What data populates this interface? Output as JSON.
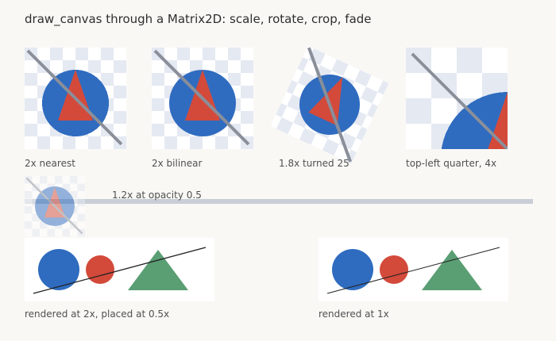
{
  "page": {
    "title": "draw_canvas through a Matrix2D: scale, rotate, crop, fade"
  },
  "thumbnails": [
    {
      "label": "2x nearest"
    },
    {
      "label": "2x bilinear"
    },
    {
      "label": "1.8x turned 25"
    },
    {
      "label": "top-left quarter, 4x"
    }
  ],
  "faded": {
    "label": "1.2x at opacity 0.5"
  },
  "panels": [
    {
      "label": "rendered at 2x, placed at 0.5x"
    },
    {
      "label": "rendered at 1x"
    }
  ],
  "colors": {
    "background": "#f9f8f5",
    "checker_light": "#ffffff",
    "checker_dark": "#e5e9f2",
    "circle_blue": "#2f6cc0",
    "triangle_red": "#d34a3b",
    "line_gray": "#8a8f9a",
    "band_gray": "#c8cdd6",
    "green_triangle": "#5a9e74",
    "panel_bg": "#ffffff",
    "panel_line": "#222222"
  }
}
